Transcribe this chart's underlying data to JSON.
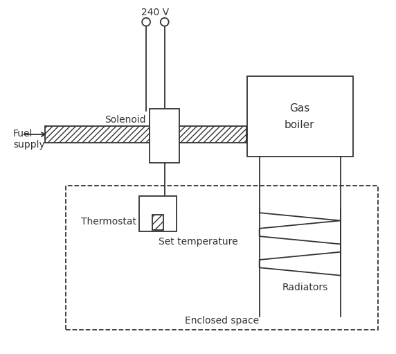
{
  "bg_color": "#ffffff",
  "line_color": "#333333",
  "fig_width": 5.72,
  "fig_height": 5.11,
  "dpi": 100,
  "labels": {
    "voltage": "240 V",
    "solenoid": "Solenoid",
    "fuel_supply": "Fuel\nsupply",
    "gas_boiler": "Gas\nboiler",
    "thermostat": "Thermostat",
    "set_temp": "Set temperature",
    "radiators": "Radiators",
    "enclosed": "Enclosed space"
  },
  "font_size": 10
}
